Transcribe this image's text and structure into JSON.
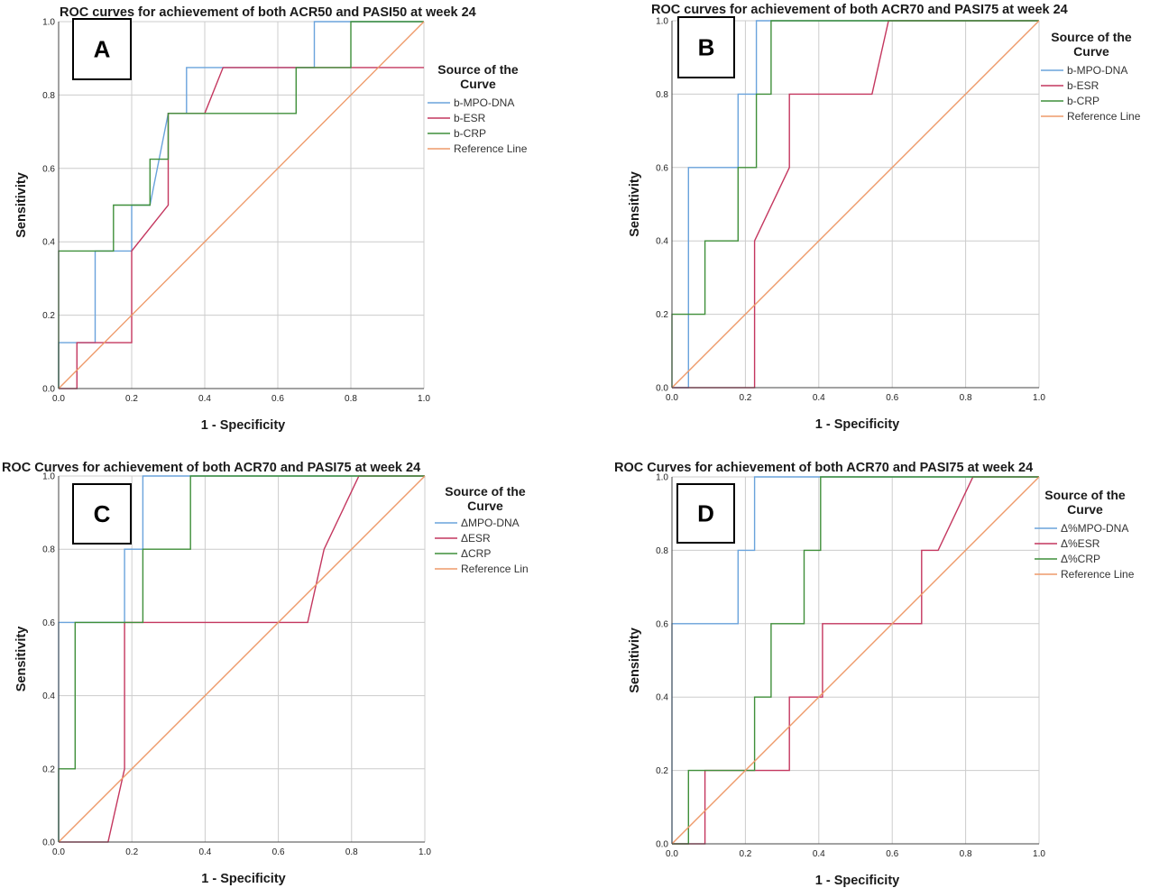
{
  "figure": {
    "colors": {
      "mpo": "#6aa3dc",
      "esr": "#c4375f",
      "crp": "#3f8f3a",
      "ref": "#ee9a6a",
      "grid": "#cccccc",
      "axis": "#444444"
    }
  },
  "chart_data": [
    {
      "panel_letter": "A",
      "type": "line",
      "title": "ROC curves for achievement of both ACR50 and PASI50 at week 24",
      "xlabel": "1 - Specificity",
      "ylabel": "Sensitivity",
      "xlim": [
        0,
        1
      ],
      "ylim": [
        0,
        1
      ],
      "x_ticks": [
        "0.0",
        "0.2",
        "0.4",
        "0.6",
        "0.8",
        "1.0"
      ],
      "y_ticks": [
        "0.0",
        "0.2",
        "0.4",
        "0.6",
        "0.8",
        "1.0"
      ],
      "grid": true,
      "legend_title": [
        "Source of the",
        "Curve"
      ],
      "legend_position": "top-right",
      "series": [
        {
          "name": "b-MPO-DNA",
          "color_key": "mpo",
          "x": [
            0,
            0,
            0.05,
            0.05,
            0.1,
            0.1,
            0.2,
            0.2,
            0.25,
            0.3,
            0.35,
            0.35,
            0.45,
            0.65,
            0.7,
            0.7,
            1.0
          ],
          "y": [
            0,
            0.125,
            0.125,
            0.125,
            0.125,
            0.375,
            0.375,
            0.5,
            0.5,
            0.75,
            0.75,
            0.875,
            0.875,
            0.875,
            0.875,
            1.0,
            1.0
          ]
        },
        {
          "name": "b-ESR",
          "color_key": "esr",
          "x": [
            0,
            0.05,
            0.05,
            0.2,
            0.2,
            0.3,
            0.3,
            0.4,
            0.45,
            0.8,
            0.8,
            1.0
          ],
          "y": [
            0,
            0,
            0.125,
            0.125,
            0.375,
            0.5,
            0.75,
            0.75,
            0.875,
            0.875,
            0.875,
            0.875
          ]
        },
        {
          "name": "b-CRP",
          "color_key": "crp",
          "x": [
            0,
            0,
            0,
            0,
            0.15,
            0.15,
            0.25,
            0.25,
            0.3,
            0.3,
            0.65,
            0.65,
            0.8,
            0.8,
            1.0
          ],
          "y": [
            0,
            0.125,
            0.125,
            0.375,
            0.375,
            0.5,
            0.5,
            0.625,
            0.625,
            0.75,
            0.75,
            0.875,
            0.875,
            1.0,
            1.0
          ]
        },
        {
          "name": "Reference Line",
          "color_key": "ref",
          "x": [
            0,
            1
          ],
          "y": [
            0,
            1
          ]
        }
      ]
    },
    {
      "panel_letter": "B",
      "type": "line",
      "title": "ROC curves for achievement of both ACR70 and PASI75 at week 24",
      "xlabel": "1 - Specificity",
      "ylabel": "Sensitivity",
      "xlim": [
        0,
        1
      ],
      "ylim": [
        0,
        1
      ],
      "x_ticks": [
        "0.0",
        "0.2",
        "0.4",
        "0.6",
        "0.8",
        "1.0"
      ],
      "y_ticks": [
        "0.0",
        "0.2",
        "0.4",
        "0.6",
        "0.8",
        "1.0"
      ],
      "grid": true,
      "legend_title": [
        "Source of the",
        "Curve"
      ],
      "legend_position": "top-right",
      "series": [
        {
          "name": "b-MPO-DNA",
          "color_key": "mpo",
          "x": [
            0,
            0.045,
            0.045,
            0.18,
            0.18,
            0.23,
            0.23,
            1.0
          ],
          "y": [
            0,
            0,
            0.6,
            0.6,
            0.8,
            0.8,
            1.0,
            1.0
          ]
        },
        {
          "name": "b-ESR",
          "color_key": "esr",
          "x": [
            0,
            0.225,
            0.225,
            0.32,
            0.32,
            0.545,
            0.59,
            1.0
          ],
          "y": [
            0,
            0,
            0.4,
            0.6,
            0.8,
            0.8,
            1.0,
            1.0
          ]
        },
        {
          "name": "b-CRP",
          "color_key": "crp",
          "x": [
            0,
            0,
            0.09,
            0.09,
            0.18,
            0.18,
            0.23,
            0.23,
            0.27,
            0.27,
            1.0
          ],
          "y": [
            0,
            0.2,
            0.2,
            0.4,
            0.4,
            0.6,
            0.6,
            0.8,
            0.8,
            1.0,
            1.0
          ]
        },
        {
          "name": "Reference Line",
          "color_key": "ref",
          "x": [
            0,
            1
          ],
          "y": [
            0,
            1
          ]
        }
      ]
    },
    {
      "panel_letter": "C",
      "type": "line",
      "title": "ROC Curves for achievement of both ACR70 and PASI75 at week 24",
      "xlabel": "1 - Specificity",
      "ylabel": "Sensitivity",
      "xlim": [
        0,
        1
      ],
      "ylim": [
        0,
        1
      ],
      "x_ticks": [
        "0.0",
        "0.2",
        "0.4",
        "0.6",
        "0.8",
        "1.0"
      ],
      "y_ticks": [
        "0.0",
        "0.2",
        "0.4",
        "0.6",
        "0.8",
        "1.0"
      ],
      "grid": true,
      "legend_title": [
        "Source of the",
        "Curve"
      ],
      "legend_position": "top-right",
      "series": [
        {
          "name": "ΔMPO-DNA",
          "color_key": "mpo",
          "x": [
            0,
            0,
            0.18,
            0.18,
            0.23,
            0.23,
            1.0
          ],
          "y": [
            0,
            0.6,
            0.6,
            0.8,
            0.8,
            1.0,
            1.0
          ]
        },
        {
          "name": "ΔESR",
          "color_key": "esr",
          "x": [
            0,
            0.135,
            0.18,
            0.18,
            0.68,
            0.725,
            0.82,
            1.0
          ],
          "y": [
            0,
            0,
            0.2,
            0.6,
            0.6,
            0.8,
            1.0,
            1.0
          ]
        },
        {
          "name": "ΔCRP",
          "color_key": "crp",
          "x": [
            0,
            0,
            0.045,
            0.045,
            0.23,
            0.23,
            0.36,
            0.36,
            1.0
          ],
          "y": [
            0,
            0.2,
            0.2,
            0.6,
            0.6,
            0.8,
            0.8,
            1.0,
            1.0
          ]
        },
        {
          "name": "Reference Lin",
          "color_key": "ref",
          "x": [
            0,
            1
          ],
          "y": [
            0,
            1
          ]
        }
      ]
    },
    {
      "panel_letter": "D",
      "type": "line",
      "title": "ROC Curves for achievement of both ACR70 and PASI75 at week 24",
      "xlabel": "1 - Specificity",
      "ylabel": "Sensitivity",
      "xlim": [
        0,
        1
      ],
      "ylim": [
        0,
        1
      ],
      "x_ticks": [
        "0.0",
        "0.2",
        "0.4",
        "0.6",
        "0.8",
        "1.0"
      ],
      "y_ticks": [
        "0.0",
        "0.2",
        "0.4",
        "0.6",
        "0.8",
        "1.0"
      ],
      "grid": true,
      "legend_title": [
        "Source of the",
        "Curve"
      ],
      "legend_position": "top-right",
      "series": [
        {
          "name": "Δ%MPO-DNA",
          "color_key": "mpo",
          "x": [
            0,
            0,
            0.18,
            0.18,
            0.225,
            0.225,
            1.0
          ],
          "y": [
            0,
            0.6,
            0.6,
            0.8,
            0.8,
            1.0,
            1.0
          ]
        },
        {
          "name": "Δ%ESR",
          "color_key": "esr",
          "x": [
            0,
            0.09,
            0.09,
            0.32,
            0.32,
            0.41,
            0.41,
            0.68,
            0.68,
            0.725,
            0.82,
            1.0
          ],
          "y": [
            0,
            0,
            0.2,
            0.2,
            0.4,
            0.4,
            0.6,
            0.6,
            0.8,
            0.8,
            1.0,
            1.0
          ]
        },
        {
          "name": "Δ%CRP",
          "color_key": "crp",
          "x": [
            0,
            0.045,
            0.045,
            0.225,
            0.225,
            0.27,
            0.27,
            0.36,
            0.36,
            0.405,
            0.405,
            1.0
          ],
          "y": [
            0,
            0,
            0.2,
            0.2,
            0.4,
            0.4,
            0.6,
            0.6,
            0.8,
            0.8,
            1.0,
            1.0
          ]
        },
        {
          "name": "Reference Line",
          "color_key": "ref",
          "x": [
            0,
            1
          ],
          "y": [
            0,
            1
          ]
        }
      ]
    }
  ]
}
